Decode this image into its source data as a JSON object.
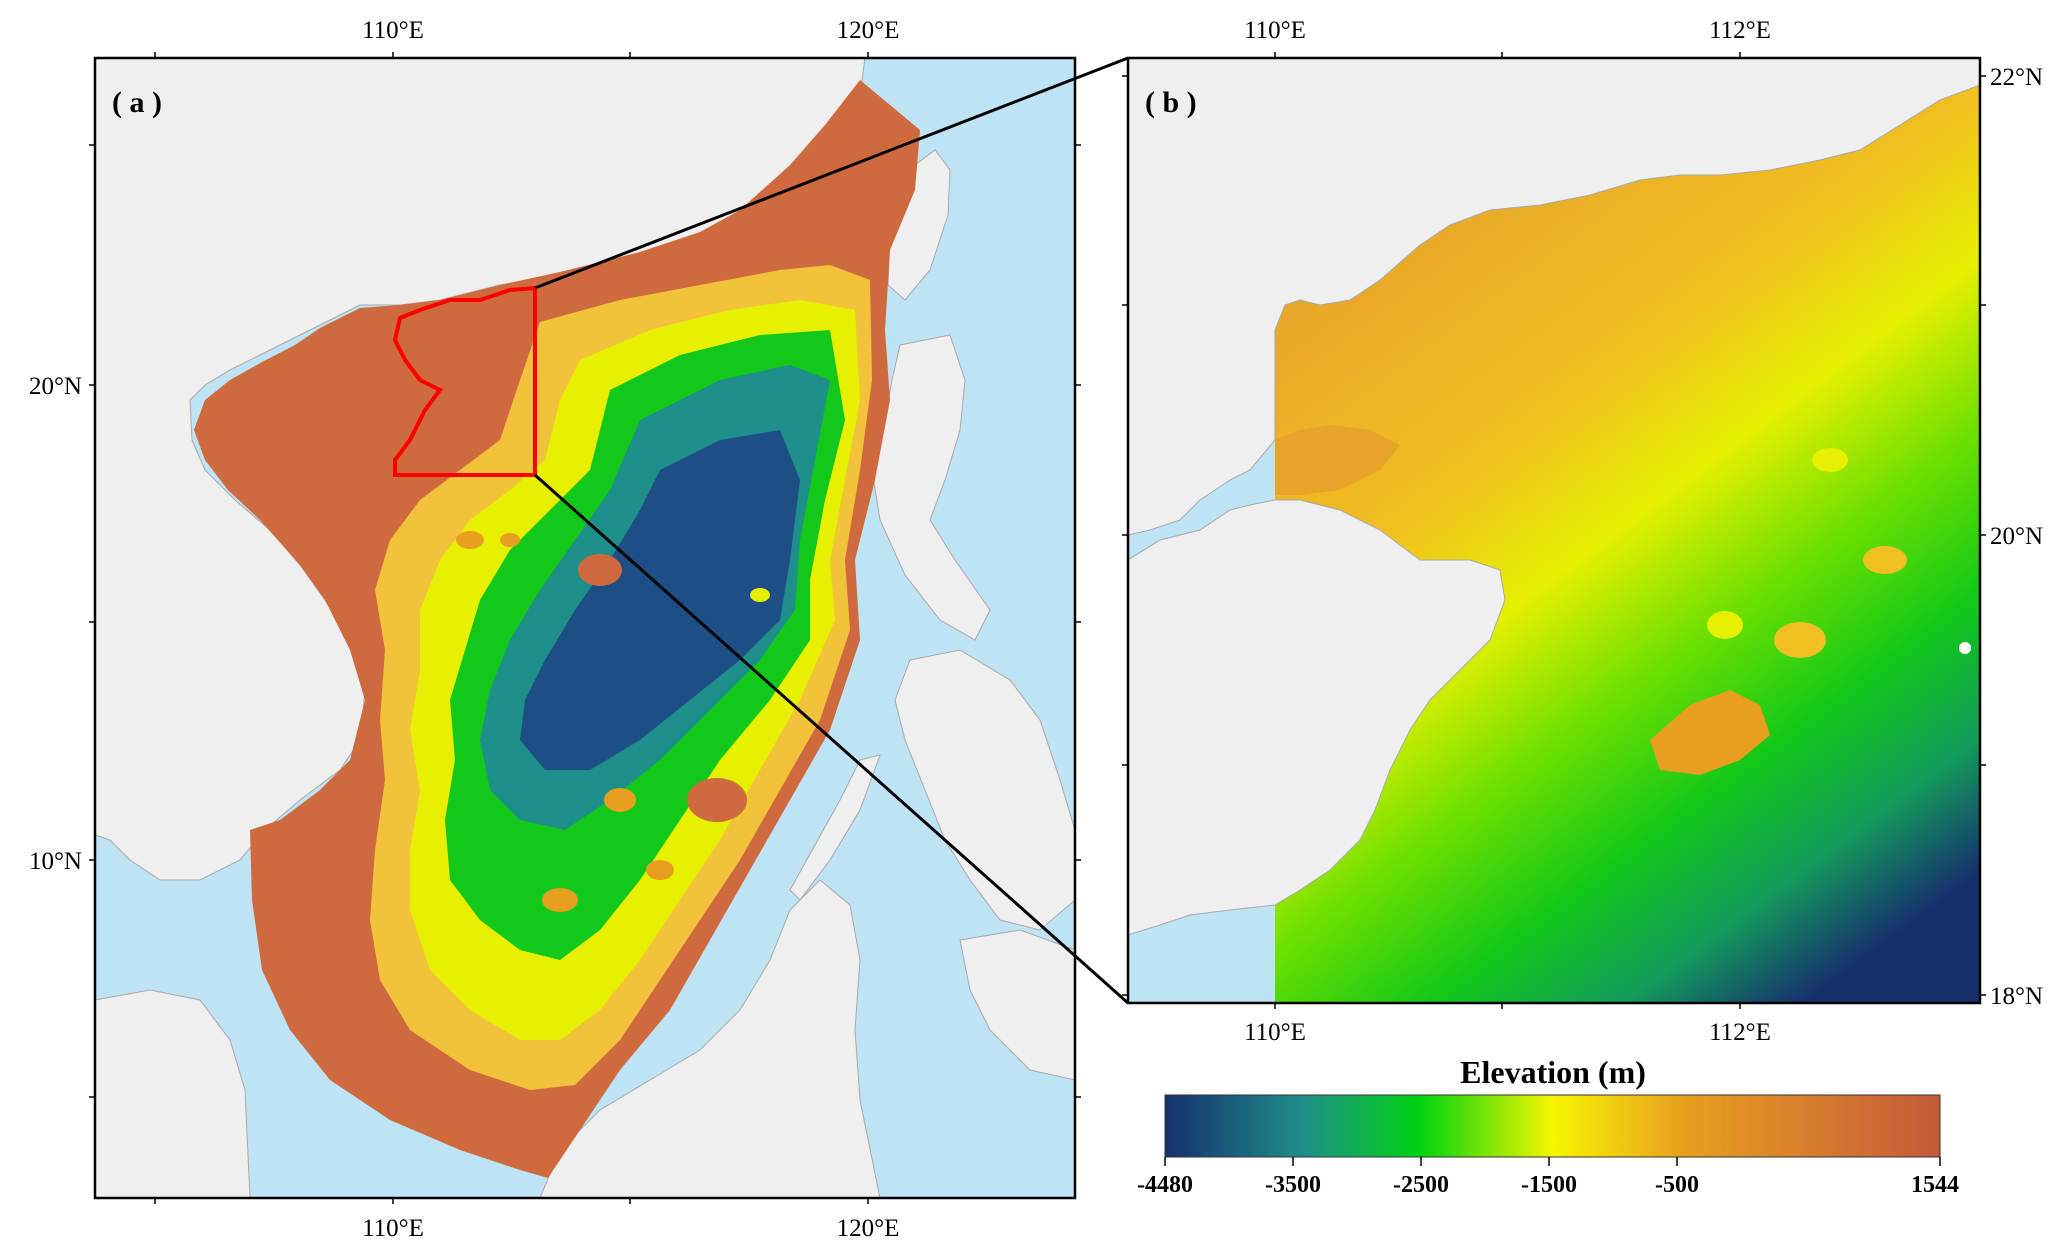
{
  "panel_a": {
    "label": "( a )",
    "top_ticks": [
      "110°E",
      "120°E"
    ],
    "bottom_ticks": [
      "110°E",
      "120°E"
    ],
    "left_ticks": [
      "20°N",
      "10°N"
    ]
  },
  "panel_b": {
    "label": "( b )",
    "top_ticks": [
      "110°E",
      "112°E"
    ],
    "bottom_ticks": [
      "110°E",
      "112°E"
    ],
    "right_ticks": [
      "22°N",
      "20°N",
      "18°N"
    ]
  },
  "colorbar": {
    "title": "Elevation (m)",
    "ticks": [
      "-4480",
      "-3500",
      "-2500",
      "-1500",
      "-500",
      "1544"
    ],
    "colors": [
      "#16306e",
      "#1f8f8a",
      "#00d40f",
      "#f6f500",
      "#e89f1f",
      "#c45a3a"
    ]
  },
  "colors": {
    "sea": "#bde3f5",
    "land": "#efefef",
    "shelf": "#cf6a3e",
    "study_box": "#ff0000"
  }
}
